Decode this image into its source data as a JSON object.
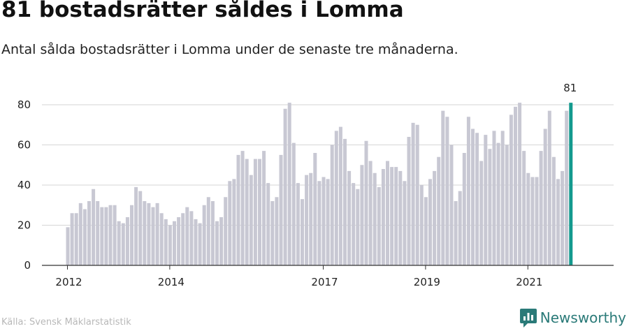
{
  "title": "81 bostadsrätter såldes i Lomma",
  "subtitle": "Antal sålda bostadsrätter i Lomma under de senaste tre månaderna.",
  "source": "Källa: Svensk Mäklarstatistik",
  "brand": {
    "name": "Newsworthy",
    "icon": "newsworthy-logo-icon"
  },
  "colors": {
    "bar": "#c8c8d3",
    "highlight": "#139a8e",
    "grid": "#d6d6d6",
    "axis": "#333333",
    "brand": "#2a7a78"
  },
  "chart_data": {
    "type": "bar",
    "title": "81 bostadsrätter såldes i Lomma",
    "xlabel": "",
    "ylabel": "",
    "ylim": [
      0,
      80
    ],
    "yticks": [
      0,
      20,
      40,
      60,
      80
    ],
    "xticks": [
      "2012",
      "2014",
      "2017",
      "2019",
      "2021"
    ],
    "x_start": "2012-01",
    "highlight_label": "81",
    "values": [
      19,
      26,
      26,
      31,
      28,
      32,
      38,
      32,
      29,
      29,
      30,
      30,
      22,
      21,
      24,
      30,
      39,
      37,
      32,
      31,
      29,
      31,
      26,
      23,
      20,
      22,
      24,
      26,
      29,
      27,
      23,
      21,
      30,
      34,
      32,
      22,
      24,
      34,
      42,
      43,
      55,
      57,
      53,
      45,
      53,
      53,
      57,
      41,
      32,
      34,
      55,
      78,
      81,
      61,
      41,
      33,
      45,
      46,
      56,
      42,
      44,
      43,
      60,
      67,
      69,
      63,
      47,
      41,
      38,
      50,
      62,
      52,
      46,
      39,
      48,
      52,
      49,
      49,
      47,
      42,
      64,
      71,
      70,
      40,
      34,
      43,
      47,
      54,
      77,
      74,
      60,
      32,
      37,
      56,
      74,
      68,
      66,
      52,
      65,
      58,
      67,
      61,
      67,
      60,
      75,
      79,
      81,
      57,
      46,
      44,
      44,
      57,
      68,
      77,
      54,
      43,
      47,
      77,
      81
    ]
  }
}
